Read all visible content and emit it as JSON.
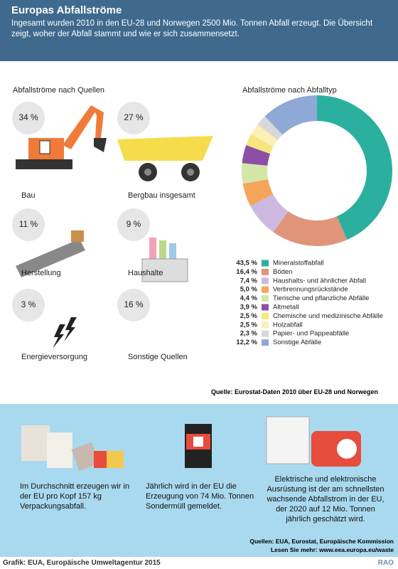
{
  "header": {
    "title": "Europas Abfallströme",
    "subtitle": "Ingesamt wurden 2010 in den EU-28 und Norwegen 2500 Mio. Tonnen Abfall erzeugt. Die Übersicht zeigt, woher der Abfall stammt und wie er sich zusammensetzt."
  },
  "sources": {
    "title": "Abfallströme nach Quellen",
    "items": [
      {
        "label": "Bau",
        "share": "34 %"
      },
      {
        "label": "Bergbau insgesamt",
        "share": "27 %"
      },
      {
        "label": "Herstellung",
        "share": "11 %"
      },
      {
        "label": "Haushalte",
        "share": "9 %"
      },
      {
        "label": "Energieversorgung",
        "share": "3 %"
      },
      {
        "label": "Sonstige Quellen",
        "share": "16 %"
      }
    ]
  },
  "chart_data": {
    "type": "pie",
    "donut": true,
    "title": "Abfallströme nach Abfalltyp",
    "categories": [
      "Mineralstoffabfall",
      "Böden",
      "Haushalts- und ähnlicher Abfall",
      "Verbrennungsrückstände",
      "Tierische und pflanzliche Abfälle",
      "Altmetall",
      "Chemische und medizinische Abfälle",
      "Holzabfall",
      "Papier- und Pappeabfälle",
      "Sonstige Abfälle"
    ],
    "values": [
      43.5,
      16.4,
      7.4,
      5.0,
      4.4,
      3.9,
      2.5,
      2.5,
      2.3,
      12.2
    ],
    "value_labels": [
      "43,5 %",
      "16,4 %",
      "7,4 %",
      "5,0 %",
      "4,4 %",
      "3,9 %",
      "2,5 %",
      "2,5 %",
      "2,3 %",
      "12,2 %"
    ],
    "colors": [
      "#2bb0a0",
      "#e0957a",
      "#cdb9e0",
      "#f5a55a",
      "#d4e6a6",
      "#8c4fa8",
      "#f6e67e",
      "#fbf1b4",
      "#d8d8d8",
      "#8ea9d6"
    ]
  },
  "source_note": "Quelle: Eurostat-Daten 2010 über EU-28 und Norwegen",
  "facts": [
    "Im Durchschnitt erzeugen wir in der EU pro Kopf 157 kg Verpackungsabfall.",
    "Jährlich wird in der EU die Erzeugung von 74 Mio. Tonnen Sondermüll gemeldet.",
    "Elektrische und elektronische Ausrüstung ist der am schnellsten wachsende Abfallstrom in der EU, der 2020 auf 12 Mio. Tonnen jährlich geschätzt wird."
  ],
  "credits": {
    "sources": "Quellen: EUA, Eurostat, Europäische Kommission",
    "more": "Lesen Sie mehr: www.eea.europa.eu/waste"
  },
  "footer": {
    "credit": "Grafik: EUA, Europäische Umweltagentur 2015",
    "logo": "RAO"
  }
}
